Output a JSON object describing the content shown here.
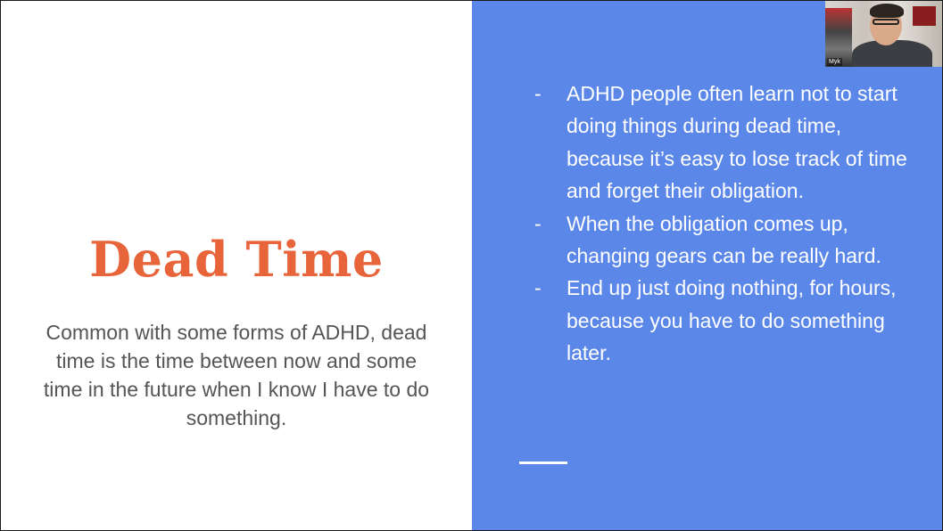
{
  "slide": {
    "title": "Dead Time",
    "description": "Common with some forms of ADHD, dead time is the time between now and some time in the future when I know I have to do something.",
    "bullet_marker": "-",
    "bullets": [
      "ADHD people often learn not to start doing things during dead time, because it’s easy to lose track of time and forget their obligation.",
      "When the obligation comes up, changing gears can be really hard.",
      "End up just doing nothing, for hours, because you have to do something later."
    ]
  },
  "video": {
    "participant_name": "Myk"
  },
  "colors": {
    "title": "#e8643a",
    "right_panel": "#5b87e8",
    "body_text": "#555555"
  }
}
